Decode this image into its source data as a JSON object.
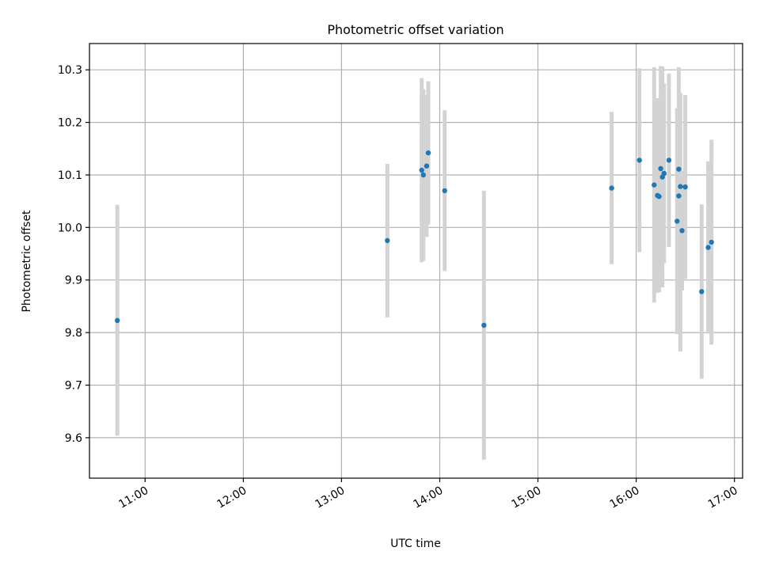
{
  "colors": {
    "background": "#ffffff",
    "point": "#1f77b4",
    "errorbar": "#d3d3d3",
    "grid": "#b0b0b0",
    "axis": "#000000"
  },
  "chart_data": {
    "type": "scatter",
    "title": "Photometric offset variation",
    "xlabel": "UTC time",
    "ylabel": "Photometric offset",
    "xlim": [
      "10:26",
      "17:05"
    ],
    "ylim": [
      9.523,
      10.35
    ],
    "grid": true,
    "x_ticks": [
      "11:00",
      "12:00",
      "13:00",
      "14:00",
      "15:00",
      "16:00",
      "17:00"
    ],
    "y_ticks": [
      "9.6",
      "9.7",
      "9.8",
      "9.9",
      "10.0",
      "10.1",
      "10.2",
      "10.3"
    ],
    "series": [
      {
        "marker": "point",
        "errorbar": true,
        "points": [
          {
            "x": "10:43",
            "y": 9.823,
            "ylow": 9.604,
            "yhigh": 10.043
          },
          {
            "x": "13:28",
            "y": 9.975,
            "ylow": 9.829,
            "yhigh": 10.121
          },
          {
            "x": "13:49",
            "y": 10.109,
            "ylow": 9.934,
            "yhigh": 10.284
          },
          {
            "x": "13:50",
            "y": 10.1,
            "ylow": 9.937,
            "yhigh": 10.263
          },
          {
            "x": "13:52",
            "y": 10.117,
            "ylow": 9.982,
            "yhigh": 10.252
          },
          {
            "x": "13:53",
            "y": 10.142,
            "ylow": 10.006,
            "yhigh": 10.278
          },
          {
            "x": "14:03",
            "y": 10.07,
            "ylow": 9.917,
            "yhigh": 10.223
          },
          {
            "x": "14:27",
            "y": 9.814,
            "ylow": 9.558,
            "yhigh": 10.07
          },
          {
            "x": "15:45",
            "y": 10.075,
            "ylow": 9.93,
            "yhigh": 10.22
          },
          {
            "x": "16:02",
            "y": 10.128,
            "ylow": 9.953,
            "yhigh": 10.303
          },
          {
            "x": "16:11",
            "y": 10.081,
            "ylow": 9.857,
            "yhigh": 10.305
          },
          {
            "x": "16:13",
            "y": 10.061,
            "ylow": 9.876,
            "yhigh": 10.246
          },
          {
            "x": "16:14",
            "y": 10.059,
            "ylow": 9.877,
            "yhigh": 10.241
          },
          {
            "x": "16:15",
            "y": 10.112,
            "ylow": 9.917,
            "yhigh": 10.307
          },
          {
            "x": "16:16",
            "y": 10.096,
            "ylow": 9.886,
            "yhigh": 10.306
          },
          {
            "x": "16:17",
            "y": 10.103,
            "ylow": 9.932,
            "yhigh": 10.274
          },
          {
            "x": "16:20",
            "y": 10.128,
            "ylow": 9.963,
            "yhigh": 10.293
          },
          {
            "x": "16:25",
            "y": 10.012,
            "ylow": 9.797,
            "yhigh": 10.227
          },
          {
            "x": "16:26",
            "y": 10.111,
            "ylow": 10.013,
            "yhigh": 10.209
          },
          {
            "x": "16:26",
            "y": 10.06,
            "ylow": 9.815,
            "yhigh": 10.305
          },
          {
            "x": "16:27",
            "y": 10.078,
            "ylow": 9.764,
            "yhigh": 10.256
          },
          {
            "x": "16:28",
            "y": 9.994,
            "ylow": 9.88,
            "yhigh": 10.108
          },
          {
            "x": "16:30",
            "y": 10.077,
            "ylow": 9.902,
            "yhigh": 10.252
          },
          {
            "x": "16:40",
            "y": 9.878,
            "ylow": 9.712,
            "yhigh": 10.044
          },
          {
            "x": "16:44",
            "y": 9.962,
            "ylow": 9.798,
            "yhigh": 10.126
          },
          {
            "x": "16:46",
            "y": 9.972,
            "ylow": 9.777,
            "yhigh": 10.167
          }
        ]
      }
    ]
  }
}
